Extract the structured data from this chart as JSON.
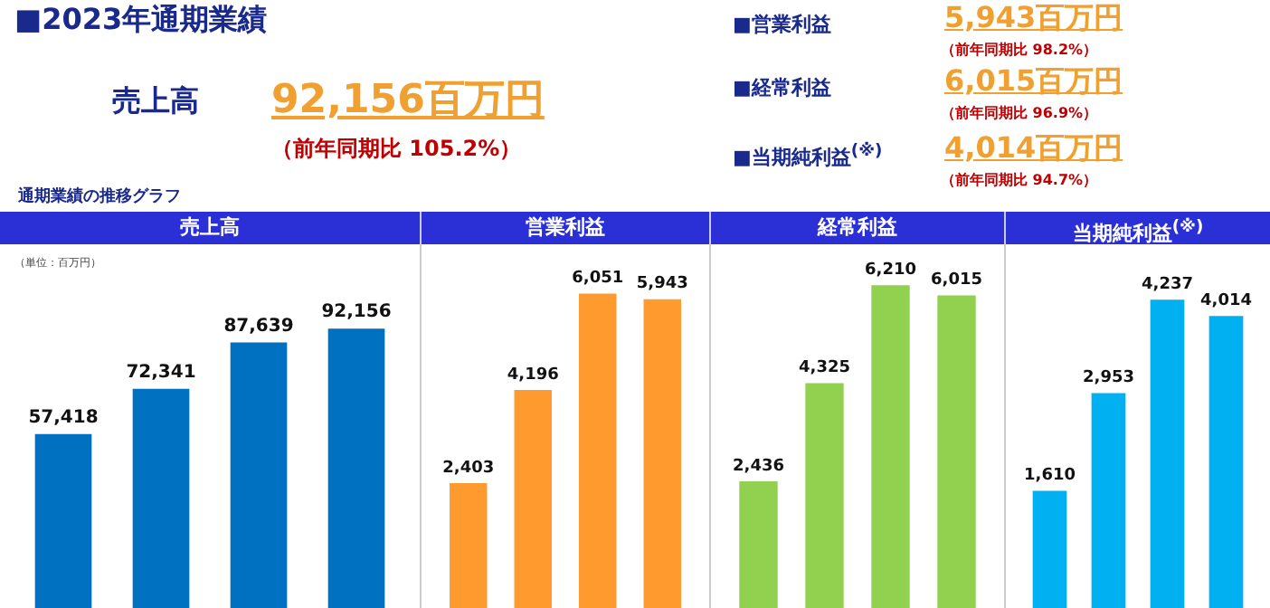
{
  "chart_data": [
    {
      "type": "other",
      "title": "■2023年通期業績",
      "subtitle": "通期業績の推移グラフ",
      "annotations": [
        "売上高",
        "92,156百万円",
        "（前年同期比  105.2%）",
        "■営業利益",
        "5,943百万円",
        "（前年同期比    98.2%）",
        "■経常利益",
        "6,015百万円",
        "（前年同期比    96.9%）",
        "■当期純利益$^{(※)}$",
        "4,014百万円",
        "（前年同期比    94.7%）"
      ]
    },
    {
      "type": "bar",
      "title": "売上高",
      "annotations": [
        "（単位：百万円）"
      ],
      "categories": [
        null,
        null,
        null,
        null
      ],
      "series": [
        {
          "color": "#0070c0",
          "values": [
            57418,
            72341,
            87639,
            92156
          ],
          "value_labels": [
            "57,418",
            "72,341",
            "87,639",
            "92,156"
          ]
        }
      ]
    },
    {
      "type": "bar",
      "title": "営業利益",
      "categories": [
        null,
        null,
        null,
        null
      ],
      "series": [
        {
          "color": "#ff9a2e",
          "values": [
            2403,
            4196,
            6051,
            5943
          ],
          "value_labels": [
            "2,403",
            "4,196",
            "6,051",
            "5,943"
          ]
        }
      ]
    },
    {
      "type": "bar",
      "title": "経常利益",
      "categories": [
        null,
        null,
        null,
        null
      ],
      "series": [
        {
          "color": "#92d050",
          "values": [
            2436,
            4325,
            6210,
            6015
          ],
          "value_labels": [
            "2,436",
            "4,325",
            "6,210",
            "6,015"
          ]
        }
      ]
    },
    {
      "type": "bar",
      "title": "当期純利益$^{(※)}$",
      "categories": [
        null,
        null,
        null,
        null
      ],
      "series": [
        {
          "color": "#00b0f0",
          "values": [
            1610,
            2953,
            4237,
            4014
          ],
          "value_labels": [
            "1,610",
            "2,953",
            "4,237",
            "4,014"
          ]
        }
      ]
    }
  ]
}
